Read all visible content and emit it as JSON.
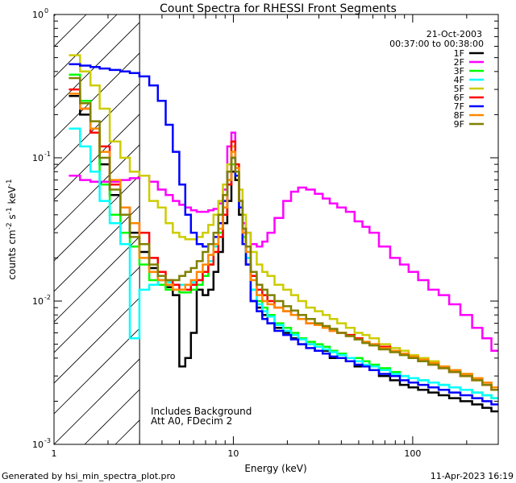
{
  "footer": {
    "generated_by": "Generated by hsi_min_spectra_plot.pro",
    "date": "11-Apr-2023 16:19"
  },
  "annotations": {
    "date": "21-Oct-2003",
    "time_range": "00:37:00 to 00:38:00",
    "includes_background": "Includes Background",
    "attenuator": "Att A0, FDecim 2"
  },
  "chart_data": {
    "type": "line",
    "title": "Count Spectra for RHESSI Front Segments",
    "xlabel": "Energy (keV)",
    "ylabel_parts": [
      "counts cm",
      "-2",
      " s",
      "-1",
      " keV",
      "-1"
    ],
    "x_scale": "log",
    "y_scale": "log",
    "xlim": [
      1,
      300
    ],
    "ylim": [
      0.001,
      1
    ],
    "x_ticks": [
      {
        "v": 1,
        "label": "1"
      },
      {
        "v": 10,
        "label": "10"
      },
      {
        "v": 100,
        "label": "100"
      }
    ],
    "y_ticks": [
      {
        "v": 0.001,
        "base": "10",
        "exp": "-3"
      },
      {
        "v": 0.01,
        "base": "10",
        "exp": "-2"
      },
      {
        "v": 0.1,
        "base": "10",
        "exp": "-1"
      },
      {
        "v": 1,
        "base": "10",
        "exp": "0"
      }
    ],
    "hatched_region_keV": [
      1,
      3
    ],
    "legend_location": "top-right",
    "series": [
      {
        "name": "1F",
        "color": "#000000",
        "x": [
          1.3,
          1.5,
          1.7,
          1.9,
          2.2,
          2.5,
          2.8,
          3.2,
          3.6,
          4.0,
          4.4,
          4.8,
          5.2,
          5.6,
          6.0,
          6.5,
          7.0,
          7.5,
          8.0,
          8.5,
          9.0,
          9.5,
          10.0,
          10.5,
          11.0,
          11.5,
          12.0,
          13,
          14,
          15,
          16,
          18,
          20,
          22,
          24,
          27,
          30,
          33,
          36,
          40,
          45,
          50,
          55,
          60,
          70,
          80,
          90,
          100,
          115,
          130,
          150,
          170,
          200,
          230,
          260,
          290
        ],
        "y": [
          0.27,
          0.2,
          0.15,
          0.09,
          0.055,
          0.04,
          0.03,
          0.022,
          0.017,
          0.014,
          0.0125,
          0.011,
          0.0035,
          0.004,
          0.006,
          0.012,
          0.011,
          0.012,
          0.016,
          0.022,
          0.035,
          0.05,
          0.08,
          0.07,
          0.04,
          0.025,
          0.018,
          0.01,
          0.009,
          0.008,
          0.007,
          0.0065,
          0.006,
          0.0055,
          0.005,
          0.005,
          0.0045,
          0.0045,
          0.004,
          0.004,
          0.0038,
          0.0035,
          0.0035,
          0.0033,
          0.003,
          0.0028,
          0.0026,
          0.0025,
          0.0024,
          0.0023,
          0.0022,
          0.0021,
          0.002,
          0.0019,
          0.0018,
          0.0017
        ]
      },
      {
        "name": "2F",
        "color": "#ff00ff",
        "x": [
          1.3,
          1.5,
          1.7,
          1.9,
          2.2,
          2.5,
          2.8,
          3.2,
          3.6,
          4.0,
          4.4,
          4.8,
          5.2,
          5.6,
          6.0,
          6.5,
          7.0,
          7.5,
          8.0,
          8.5,
          9.0,
          9.5,
          10.0,
          10.5,
          11.0,
          11.5,
          12.0,
          13,
          14,
          15,
          16,
          18,
          20,
          22,
          24,
          27,
          30,
          33,
          36,
          40,
          45,
          50,
          55,
          60,
          70,
          80,
          90,
          100,
          115,
          130,
          150,
          170,
          200,
          230,
          260,
          290
        ],
        "y": [
          0.075,
          0.07,
          0.068,
          0.068,
          0.068,
          0.07,
          0.072,
          0.075,
          0.068,
          0.06,
          0.055,
          0.05,
          0.047,
          0.045,
          0.043,
          0.042,
          0.042,
          0.043,
          0.044,
          0.048,
          0.06,
          0.12,
          0.15,
          0.08,
          0.045,
          0.035,
          0.03,
          0.025,
          0.024,
          0.026,
          0.03,
          0.038,
          0.05,
          0.058,
          0.062,
          0.06,
          0.056,
          0.052,
          0.048,
          0.045,
          0.042,
          0.036,
          0.033,
          0.03,
          0.024,
          0.02,
          0.018,
          0.016,
          0.014,
          0.012,
          0.011,
          0.0095,
          0.008,
          0.0065,
          0.0055,
          0.0045
        ]
      },
      {
        "name": "3F",
        "color": "#00ff00",
        "x": [
          1.3,
          1.5,
          1.7,
          1.9,
          2.2,
          2.5,
          2.8,
          3.2,
          3.6,
          4.0,
          4.4,
          4.8,
          5.2,
          5.6,
          6.0,
          6.5,
          7.0,
          7.5,
          8.0,
          8.5,
          9.0,
          9.5,
          10.0,
          10.5,
          11.0,
          11.5,
          12.0,
          13,
          14,
          15,
          16,
          18,
          20,
          22,
          24,
          27,
          30,
          33,
          36,
          40,
          45,
          50,
          55,
          60,
          70,
          80,
          90,
          100,
          115,
          130,
          150,
          170,
          200,
          230,
          260,
          290
        ],
        "y": [
          0.38,
          0.25,
          0.15,
          0.065,
          0.04,
          0.03,
          0.024,
          0.018,
          0.014,
          0.013,
          0.012,
          0.012,
          0.0115,
          0.0115,
          0.012,
          0.013,
          0.015,
          0.018,
          0.022,
          0.03,
          0.045,
          0.07,
          0.09,
          0.075,
          0.045,
          0.028,
          0.02,
          0.012,
          0.01,
          0.009,
          0.008,
          0.007,
          0.0065,
          0.006,
          0.0055,
          0.0052,
          0.005,
          0.0048,
          0.0045,
          0.0043,
          0.004,
          0.004,
          0.0038,
          0.0036,
          0.0034,
          0.0032,
          0.003,
          0.0029,
          0.0028,
          0.0027,
          0.0026,
          0.0025,
          0.0024,
          0.0023,
          0.0022,
          0.0021
        ]
      },
      {
        "name": "4F",
        "color": "#00ffff",
        "x": [
          1.3,
          1.5,
          1.7,
          1.9,
          2.2,
          2.5,
          2.8,
          3.2,
          3.6,
          4.0,
          4.4,
          4.8,
          5.2,
          5.6,
          6.0,
          6.5,
          7.0,
          7.5,
          8.0,
          8.5,
          9.0,
          9.5,
          10.0,
          10.5,
          11.0,
          11.5,
          12.0,
          13,
          14,
          15,
          16,
          18,
          20,
          22,
          24,
          27,
          30,
          33,
          36,
          40,
          45,
          50,
          55,
          60,
          70,
          80,
          90,
          100,
          115,
          130,
          150,
          170,
          200,
          230,
          260,
          290
        ],
        "y": [
          0.16,
          0.12,
          0.08,
          0.05,
          0.035,
          0.025,
          0.0055,
          0.012,
          0.013,
          0.014,
          0.0135,
          0.013,
          0.013,
          0.013,
          0.0135,
          0.014,
          0.016,
          0.019,
          0.024,
          0.032,
          0.045,
          0.07,
          0.1,
          0.08,
          0.05,
          0.03,
          0.02,
          0.012,
          0.0095,
          0.0085,
          0.0078,
          0.0068,
          0.0062,
          0.0058,
          0.0054,
          0.005,
          0.0048,
          0.0046,
          0.0044,
          0.0042,
          0.004,
          0.0038,
          0.0036,
          0.0035,
          0.0033,
          0.0031,
          0.003,
          0.0029,
          0.0028,
          0.0027,
          0.0026,
          0.0025,
          0.0024,
          0.0023,
          0.0022,
          0.0021
        ]
      },
      {
        "name": "5F",
        "color": "#cccc00",
        "x": [
          1.3,
          1.5,
          1.7,
          1.9,
          2.2,
          2.5,
          2.8,
          3.2,
          3.6,
          4.0,
          4.4,
          4.8,
          5.2,
          5.6,
          6.0,
          6.5,
          7.0,
          7.5,
          8.0,
          8.5,
          9.0,
          9.5,
          10.0,
          10.5,
          11.0,
          11.5,
          12.0,
          13,
          14,
          15,
          16,
          18,
          20,
          22,
          24,
          27,
          30,
          33,
          36,
          40,
          45,
          50,
          55,
          60,
          70,
          80,
          90,
          100,
          115,
          130,
          150,
          170,
          200,
          230,
          260,
          290
        ],
        "y": [
          0.52,
          0.4,
          0.32,
          0.22,
          0.13,
          0.1,
          0.08,
          0.075,
          0.05,
          0.045,
          0.035,
          0.03,
          0.028,
          0.027,
          0.027,
          0.028,
          0.03,
          0.034,
          0.04,
          0.05,
          0.065,
          0.09,
          0.12,
          0.09,
          0.06,
          0.04,
          0.03,
          0.022,
          0.018,
          0.016,
          0.015,
          0.013,
          0.012,
          0.011,
          0.01,
          0.009,
          0.0085,
          0.008,
          0.0075,
          0.007,
          0.0065,
          0.006,
          0.0058,
          0.0055,
          0.005,
          0.0047,
          0.0045,
          0.0042,
          0.004,
          0.0038,
          0.0035,
          0.0033,
          0.0031,
          0.0029,
          0.0027,
          0.0025
        ]
      },
      {
        "name": "6F",
        "color": "#ff0000",
        "x": [
          1.3,
          1.5,
          1.7,
          1.9,
          2.2,
          2.5,
          2.8,
          3.2,
          3.6,
          4.0,
          4.4,
          4.8,
          5.2,
          5.6,
          6.0,
          6.5,
          7.0,
          7.5,
          8.0,
          8.5,
          9.0,
          9.5,
          10.0,
          10.5,
          11.0,
          11.5,
          12.0,
          13,
          14,
          15,
          16,
          18,
          20,
          22,
          24,
          27,
          30,
          33,
          36,
          40,
          45,
          50,
          55,
          60,
          70,
          80,
          90,
          100,
          115,
          130,
          150,
          170,
          200,
          230,
          260,
          290
        ],
        "y": [
          0.3,
          0.22,
          0.15,
          0.12,
          0.065,
          0.045,
          0.035,
          0.03,
          0.02,
          0.016,
          0.014,
          0.013,
          0.012,
          0.012,
          0.013,
          0.014,
          0.016,
          0.018,
          0.022,
          0.028,
          0.04,
          0.065,
          0.13,
          0.09,
          0.05,
          0.032,
          0.024,
          0.015,
          0.012,
          0.011,
          0.01,
          0.009,
          0.0085,
          0.008,
          0.0075,
          0.007,
          0.0068,
          0.0065,
          0.0062,
          0.006,
          0.0058,
          0.0055,
          0.0052,
          0.005,
          0.0048,
          0.0045,
          0.0043,
          0.004,
          0.0038,
          0.0036,
          0.0034,
          0.0032,
          0.003,
          0.0028,
          0.0026,
          0.0024
        ]
      },
      {
        "name": "7F",
        "color": "#0000ff",
        "x": [
          1.3,
          1.5,
          1.7,
          1.9,
          2.2,
          2.5,
          2.8,
          3.2,
          3.6,
          4.0,
          4.4,
          4.8,
          5.2,
          5.6,
          6.0,
          6.5,
          7.0,
          7.5,
          8.0,
          8.5,
          9.0,
          9.5,
          10.0,
          10.5,
          11.0,
          11.5,
          12.0,
          13,
          14,
          15,
          16,
          18,
          20,
          22,
          24,
          27,
          30,
          33,
          36,
          40,
          45,
          50,
          55,
          60,
          70,
          80,
          90,
          100,
          115,
          130,
          150,
          170,
          200,
          230,
          260,
          290
        ],
        "y": [
          0.45,
          0.44,
          0.43,
          0.42,
          0.41,
          0.4,
          0.39,
          0.37,
          0.32,
          0.25,
          0.17,
          0.11,
          0.065,
          0.04,
          0.03,
          0.025,
          0.024,
          0.025,
          0.028,
          0.035,
          0.05,
          0.08,
          0.1,
          0.075,
          0.045,
          0.025,
          0.018,
          0.01,
          0.0085,
          0.0075,
          0.007,
          0.0062,
          0.0058,
          0.0054,
          0.005,
          0.0047,
          0.0045,
          0.0043,
          0.0041,
          0.004,
          0.0038,
          0.0036,
          0.0035,
          0.0033,
          0.0031,
          0.003,
          0.0028,
          0.0027,
          0.0026,
          0.0025,
          0.0024,
          0.0023,
          0.0022,
          0.0021,
          0.002,
          0.0019
        ]
      },
      {
        "name": "8F",
        "color": "#ff8800",
        "x": [
          1.3,
          1.5,
          1.7,
          1.9,
          2.2,
          2.5,
          2.8,
          3.2,
          3.6,
          4.0,
          4.4,
          4.8,
          5.2,
          5.6,
          6.0,
          6.5,
          7.0,
          7.5,
          8.0,
          8.5,
          9.0,
          9.5,
          10.0,
          10.5,
          11.0,
          11.5,
          12.0,
          13,
          14,
          15,
          16,
          18,
          20,
          22,
          24,
          27,
          30,
          33,
          36,
          40,
          45,
          50,
          55,
          60,
          70,
          80,
          90,
          100,
          115,
          130,
          150,
          170,
          200,
          230,
          260,
          290
        ],
        "y": [
          0.28,
          0.22,
          0.16,
          0.11,
          0.07,
          0.045,
          0.035,
          0.02,
          0.016,
          0.014,
          0.013,
          0.012,
          0.012,
          0.013,
          0.014,
          0.016,
          0.018,
          0.021,
          0.025,
          0.032,
          0.045,
          0.07,
          0.11,
          0.085,
          0.05,
          0.03,
          0.022,
          0.014,
          0.011,
          0.01,
          0.0095,
          0.009,
          0.0085,
          0.008,
          0.0075,
          0.007,
          0.0068,
          0.0065,
          0.0062,
          0.006,
          0.0057,
          0.0054,
          0.0052,
          0.005,
          0.0047,
          0.0045,
          0.0043,
          0.0041,
          0.0039,
          0.0037,
          0.0035,
          0.0033,
          0.0031,
          0.0029,
          0.0027,
          0.0025
        ]
      },
      {
        "name": "9F",
        "color": "#808000",
        "x": [
          1.3,
          1.5,
          1.7,
          1.9,
          2.2,
          2.5,
          2.8,
          3.2,
          3.6,
          4.0,
          4.4,
          4.8,
          5.2,
          5.6,
          6.0,
          6.5,
          7.0,
          7.5,
          8.0,
          8.5,
          9.0,
          9.5,
          10.0,
          10.5,
          11.0,
          11.5,
          12.0,
          13,
          14,
          15,
          16,
          18,
          20,
          22,
          24,
          27,
          30,
          33,
          36,
          40,
          45,
          50,
          55,
          60,
          70,
          80,
          90,
          100,
          115,
          130,
          150,
          170,
          200,
          230,
          260,
          290
        ],
        "y": [
          0.36,
          0.24,
          0.18,
          0.1,
          0.06,
          0.04,
          0.028,
          0.025,
          0.018,
          0.015,
          0.014,
          0.014,
          0.015,
          0.016,
          0.017,
          0.019,
          0.022,
          0.025,
          0.03,
          0.04,
          0.055,
          0.08,
          0.1,
          0.08,
          0.05,
          0.032,
          0.024,
          0.016,
          0.013,
          0.012,
          0.011,
          0.01,
          0.0092,
          0.0086,
          0.008,
          0.0075,
          0.007,
          0.0067,
          0.0064,
          0.006,
          0.0057,
          0.0054,
          0.0051,
          0.0049,
          0.0046,
          0.0044,
          0.0042,
          0.004,
          0.0038,
          0.0036,
          0.0034,
          0.0032,
          0.003,
          0.0028,
          0.0026,
          0.0024
        ]
      }
    ]
  }
}
